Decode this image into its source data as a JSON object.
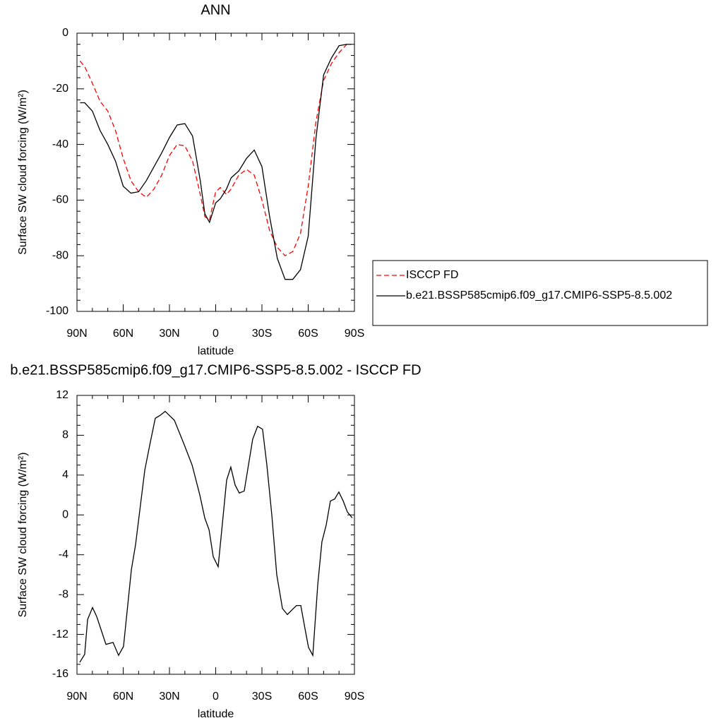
{
  "chart_data": [
    {
      "type": "line",
      "title": "ANN",
      "x_label": "latitude",
      "y_label": "Surface SW cloud forcing (W/m²)",
      "x": [
        88,
        85,
        80,
        75,
        70,
        65,
        60,
        55,
        50,
        45,
        40,
        35,
        30,
        25,
        20,
        15,
        10,
        7,
        4,
        0,
        -3,
        -7,
        -10,
        -15,
        -20,
        -25,
        -30,
        -35,
        -40,
        -45,
        -50,
        -55,
        -60,
        -65,
        -70,
        -75,
        -80,
        -85,
        -88
      ],
      "series": [
        {
          "name": "ISCCP FD",
          "color": "#ff0000",
          "line_style": "dashed",
          "values": [
            -10,
            -12,
            -18,
            -24.5,
            -28,
            -35,
            -45,
            -53,
            -57,
            -59,
            -56,
            -51,
            -44,
            -40,
            -40.5,
            -46,
            -58,
            -66,
            -67,
            -57,
            -55.5,
            -58,
            -56,
            -51,
            -49,
            -51,
            -60,
            -71,
            -77,
            -80,
            -78.5,
            -72,
            -55,
            -32,
            -17,
            -11,
            -7,
            -4,
            -4
          ]
        },
        {
          "name": "b.e21.BSSP585cmip6.f09_g17.CMIP6-SSP5-8.5.002",
          "color": "#000000",
          "line_style": "solid",
          "values": [
            -25,
            -25,
            -28,
            -35,
            -40,
            -46,
            -55,
            -57.5,
            -57,
            -53,
            -48,
            -43,
            -37.5,
            -33,
            -32.5,
            -37,
            -53,
            -65,
            -68,
            -61,
            -59.5,
            -56,
            -52,
            -49.5,
            -45,
            -42,
            -48,
            -66,
            -81,
            -88.5,
            -88.5,
            -85,
            -73,
            -38,
            -15,
            -9,
            -4.5,
            -4,
            -4
          ]
        }
      ],
      "xlim": [
        90,
        -90
      ],
      "xticks": [
        {
          "value": 90,
          "label": "90N"
        },
        {
          "value": 60,
          "label": "60N"
        },
        {
          "value": 30,
          "label": "30N"
        },
        0,
        {
          "value": -30,
          "label": "30S"
        },
        {
          "value": -60,
          "label": "60S"
        },
        {
          "value": -90,
          "label": "90S"
        }
      ],
      "ylim": [
        -100,
        0
      ],
      "yticks": [
        -100,
        -80,
        -60,
        -40,
        -20,
        0
      ],
      "legend": "outside-right"
    },
    {
      "type": "line",
      "title": "b.e21.BSSP585cmip6.f09_g17.CMIP6-SSP5-8.5.002 - ISCCP FD",
      "x_label": "latitude",
      "y_label": "Surface SW cloud forcing (W/m²)",
      "x": [
        88.2,
        85,
        83.1,
        79.9,
        77.2,
        71.2,
        66.6,
        63,
        59.8,
        54.7,
        52,
        46,
        42.8,
        39.2,
        36,
        32.8,
        26.8,
        20.8,
        15.3,
        10.3,
        7.1,
        4.3,
        1.6,
        -1.6,
        -7.1,
        -9.8,
        -12.6,
        -15.3,
        -18.5,
        -24,
        -27.2,
        -30.4,
        -33.2,
        -36.4,
        -39.6,
        -43.3,
        -46.5,
        -49.7,
        -52.4,
        -55.2,
        -57.9,
        -60.2,
        -63,
        -66.2,
        -68.9,
        -71.7,
        -74.4,
        -77.2,
        -79.9,
        -82.7,
        -85.4,
        -88.6
      ],
      "series": [
        {
          "color": "#000000",
          "line_style": "solid",
          "values": [
            -14.8,
            -14,
            -10.5,
            -9.3,
            -10.2,
            -13,
            -12.8,
            -14.1,
            -13.2,
            -5.5,
            -3,
            4.5,
            7,
            9.7,
            10,
            10.4,
            9.5,
            7.2,
            5,
            2,
            -0.3,
            -1.5,
            -4.2,
            -5.2,
            3.5,
            4.8,
            3,
            2.2,
            2.4,
            7.6,
            8.9,
            8.6,
            5,
            0,
            -6,
            -9.4,
            -10,
            -9.5,
            -9.1,
            -9.1,
            -11.4,
            -13.3,
            -14.1,
            -7,
            -2.7,
            -1,
            1.4,
            1.6,
            2.3,
            1.4,
            0.3,
            -0.3
          ]
        }
      ],
      "xlim": [
        90,
        -90
      ],
      "xticks": [
        {
          "value": 90,
          "label": "90N"
        },
        {
          "value": 60,
          "label": "60N"
        },
        {
          "value": 30,
          "label": "30N"
        },
        0,
        {
          "value": -30,
          "label": "30S"
        },
        {
          "value": -60,
          "label": "60S"
        },
        {
          "value": -90,
          "label": "90S"
        }
      ],
      "ylim": [
        -16,
        12
      ],
      "yticks": [
        -16,
        -12,
        -8,
        -4,
        0,
        4,
        8,
        12
      ]
    }
  ]
}
